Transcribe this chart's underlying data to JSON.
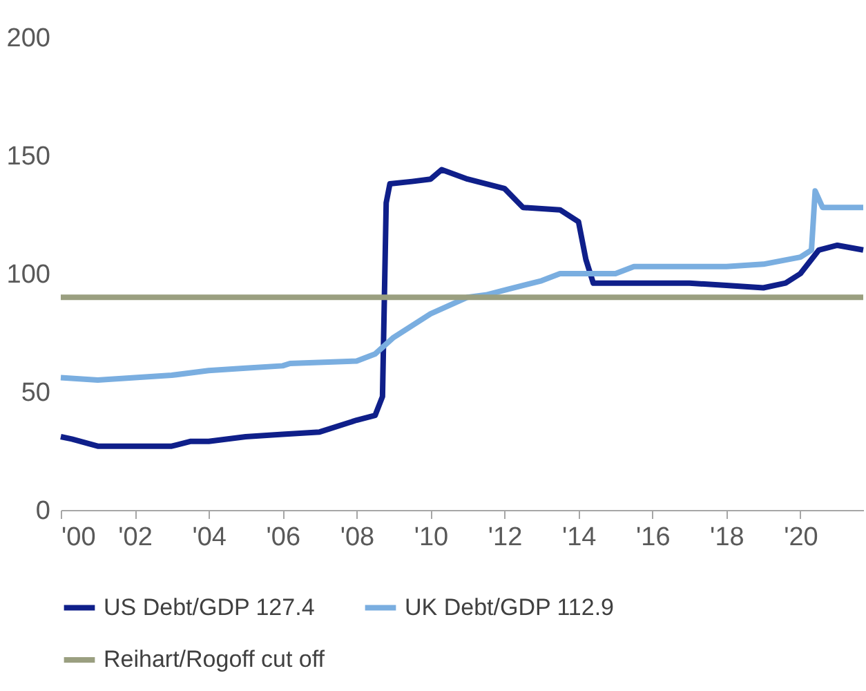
{
  "chart_data": {
    "type": "line",
    "xlim": [
      2000,
      2021.7
    ],
    "ylim": [
      0,
      200
    ],
    "yticks": [
      0,
      50,
      100,
      150,
      200
    ],
    "xticks": [
      {
        "value": 2000,
        "label": "'00"
      },
      {
        "value": 2002,
        "label": "'02"
      },
      {
        "value": 2004,
        "label": "'04"
      },
      {
        "value": 2006,
        "label": "'06"
      },
      {
        "value": 2008,
        "label": "'08"
      },
      {
        "value": 2010,
        "label": "'10"
      },
      {
        "value": 2012,
        "label": "'12"
      },
      {
        "value": 2014,
        "label": "'14"
      },
      {
        "value": 2016,
        "label": "'16"
      },
      {
        "value": 2018,
        "label": "'18"
      },
      {
        "value": 2020,
        "label": "'20"
      }
    ],
    "legend": "bottom",
    "series": [
      {
        "name": "US Debt/GDP 127.4",
        "color": "#0f1f8a",
        "x": [
          2000,
          2000.3,
          2001,
          2002,
          2003,
          2003.5,
          2004,
          2005,
          2006,
          2007,
          2008,
          2008.5,
          2008.7,
          2008.8,
          2008.9,
          2009.5,
          2010,
          2010.3,
          2011,
          2012,
          2012.5,
          2013.5,
          2014,
          2014.2,
          2014.4,
          2016,
          2017,
          2018,
          2019,
          2019.6,
          2020,
          2020.5,
          2021,
          2021.7
        ],
        "values": [
          31,
          30,
          27,
          27,
          27,
          29,
          29,
          31,
          32,
          33,
          38,
          40,
          48,
          130,
          138,
          139,
          140,
          144,
          140,
          136,
          128,
          127,
          122,
          106,
          96,
          96,
          96,
          95,
          94,
          96,
          100,
          110,
          112,
          110
        ]
      },
      {
        "name": "UK Debt/GDP 112.9",
        "color": "#7aaee0",
        "x": [
          2000,
          2001,
          2002,
          2003,
          2004,
          2005,
          2006,
          2006.2,
          2008,
          2008.5,
          2009,
          2010,
          2011,
          2011.5,
          2012,
          2013,
          2013.5,
          2014,
          2015,
          2015.5,
          2016,
          2017,
          2018,
          2019,
          2020,
          2020.3,
          2020.4,
          2020.6,
          2021.7
        ],
        "values": [
          56,
          55,
          56,
          57,
          59,
          60,
          61,
          62,
          63,
          66,
          73,
          83,
          90,
          91,
          93,
          97,
          100,
          100,
          100,
          103,
          103,
          103,
          103,
          104,
          107,
          110,
          135,
          128,
          128
        ]
      },
      {
        "name": "Reihart/Rogoff cut off",
        "color": "#9a9f80",
        "x": [
          2000,
          2021.7
        ],
        "values": [
          90,
          90
        ]
      }
    ]
  }
}
